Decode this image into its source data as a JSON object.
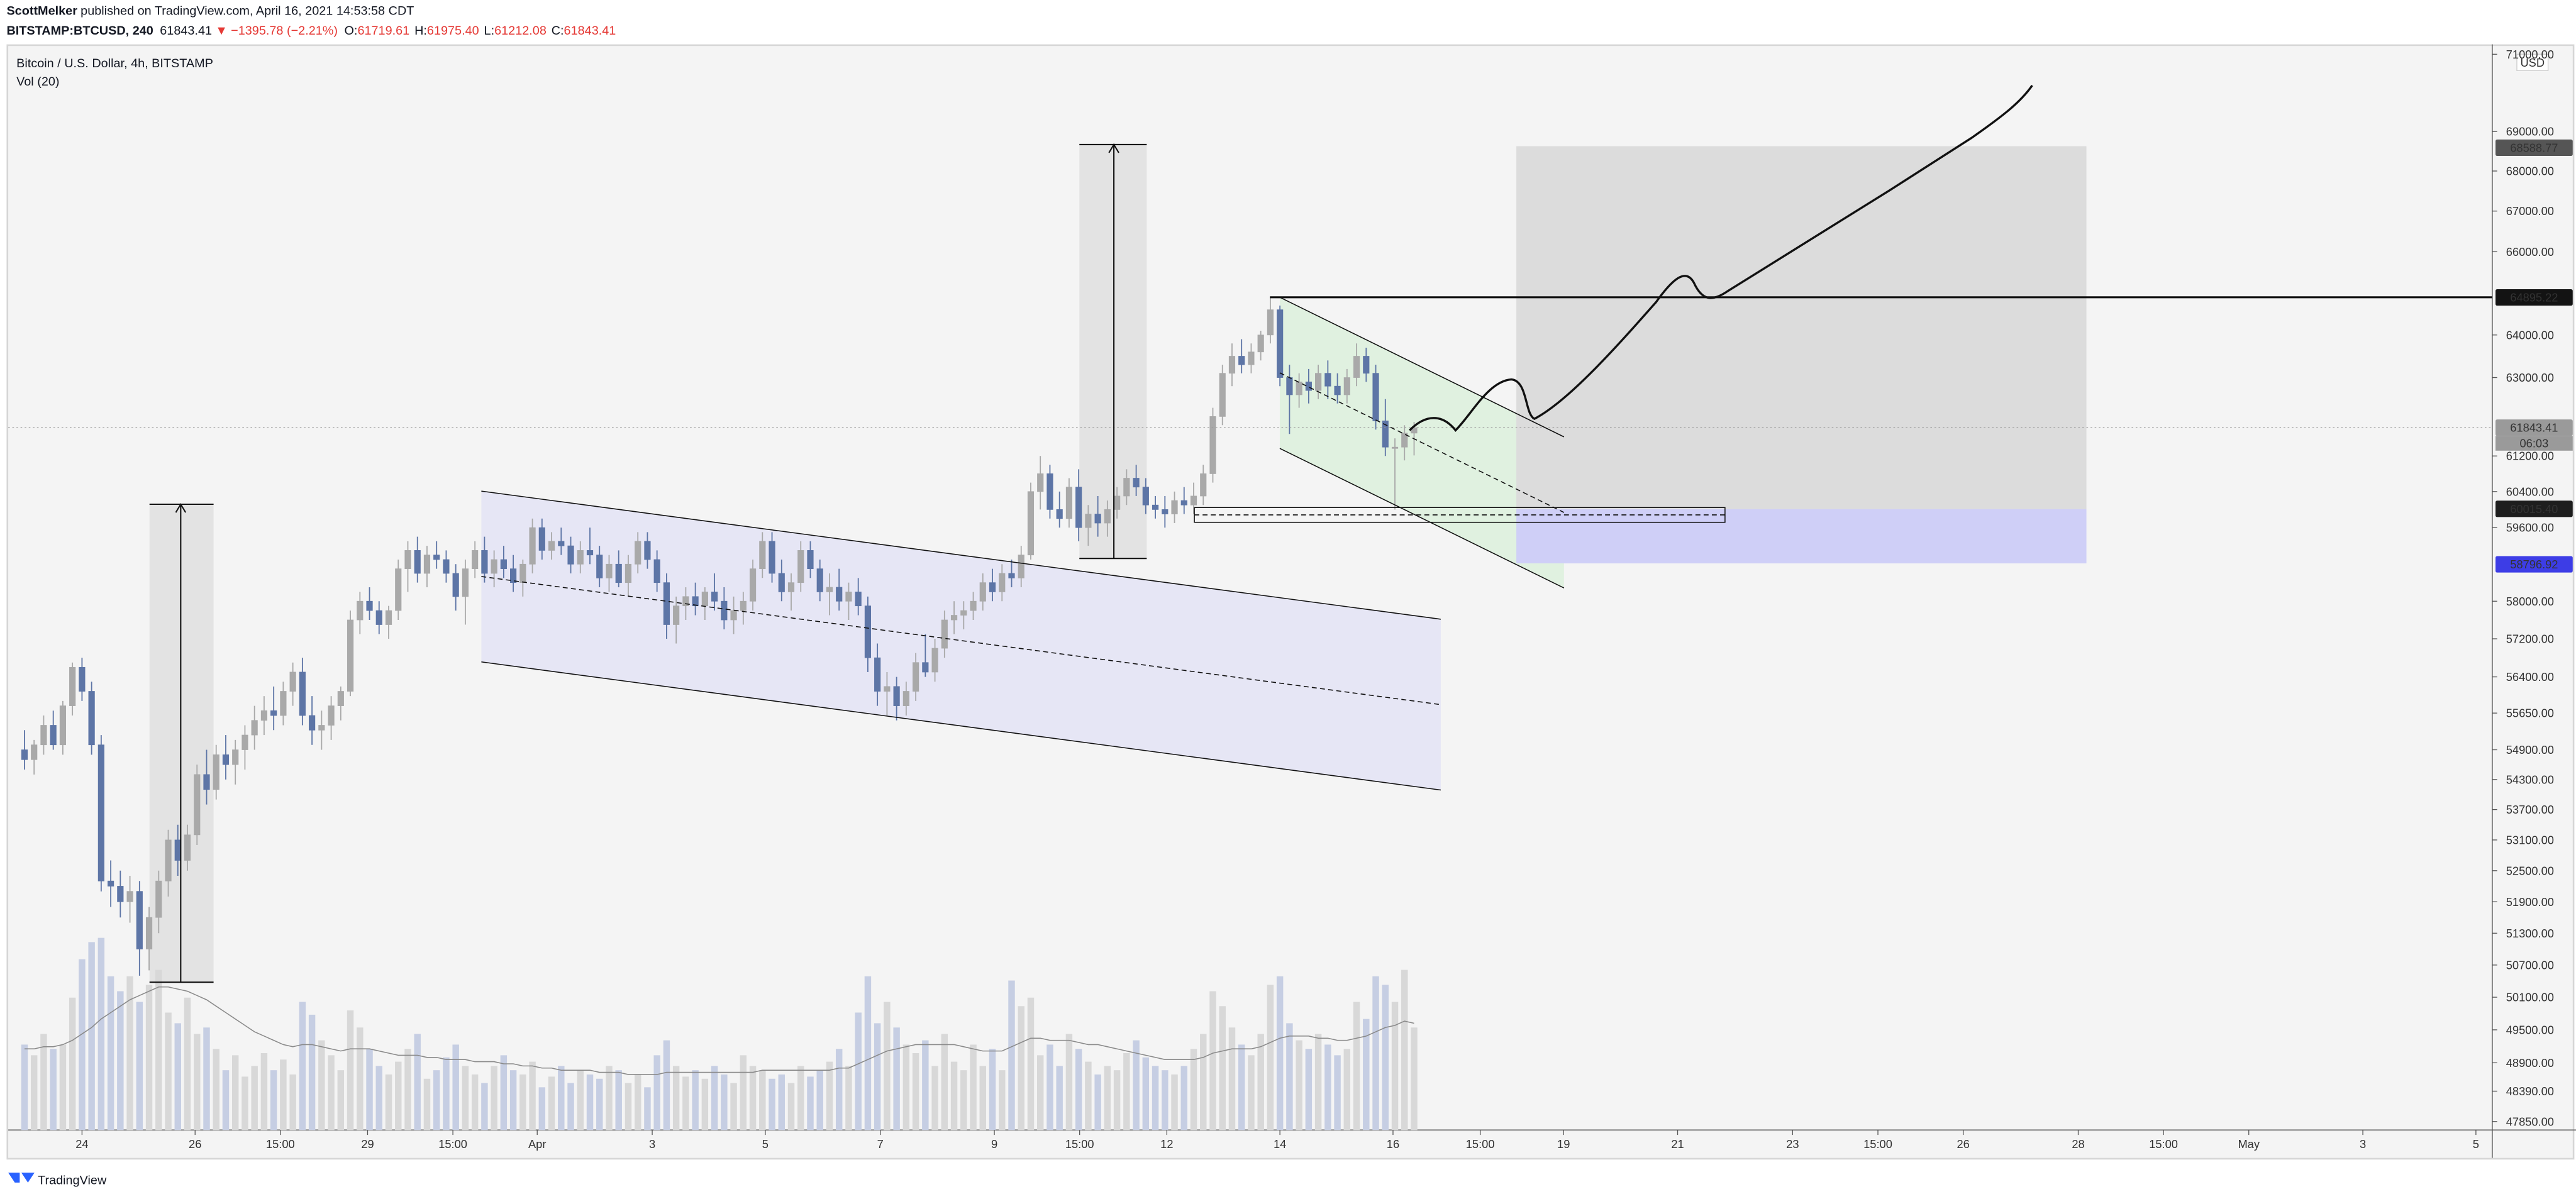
{
  "header": {
    "author": "ScottMelker",
    "published": "published on TradingView.com, April 16, 2021 14:53:58 CDT",
    "symbol": "BITSTAMP:BTCUSD, 240",
    "last": "61843.41",
    "arrow": "▼",
    "change": "−1395.78 (−2.21%)",
    "ohlc": [
      {
        "label": "O:",
        "value": "61719.61"
      },
      {
        "label": "H:",
        "value": "61975.40"
      },
      {
        "label": "L:",
        "value": "61212.08"
      },
      {
        "label": "C:",
        "value": "61843.41"
      }
    ]
  },
  "chart_data": {
    "type": "candlestick",
    "title": "Bitcoin / U.S. Dollar, 4h, BITSTAMP",
    "volume_title": "Vol (20)",
    "currency": "USD",
    "countdown": "06:03",
    "log": true,
    "ylim": [
      47700,
      71260
    ],
    "yticks": [
      {
        "value": 71000,
        "label": "71000.00"
      },
      {
        "value": 69000,
        "label": "69000.00"
      },
      {
        "value": 68000,
        "label": "68000.00"
      },
      {
        "value": 67000,
        "label": "67000.00"
      },
      {
        "value": 66000,
        "label": "66000.00"
      },
      {
        "value": 64000,
        "label": "64000.00"
      },
      {
        "value": 63000,
        "label": "63000.00"
      },
      {
        "value": 61200,
        "label": "61200.00"
      },
      {
        "value": 60400,
        "label": "60400.00"
      },
      {
        "value": 59600,
        "label": "59600.00"
      },
      {
        "value": 58000,
        "label": "58000.00"
      },
      {
        "value": 57200,
        "label": "57200.00"
      },
      {
        "value": 56400,
        "label": "56400.00"
      },
      {
        "value": 55650,
        "label": "55650.00"
      },
      {
        "value": 54900,
        "label": "54900.00"
      },
      {
        "value": 54300,
        "label": "54300.00"
      },
      {
        "value": 53700,
        "label": "53700.00"
      },
      {
        "value": 53100,
        "label": "53100.00"
      },
      {
        "value": 52500,
        "label": "52500.00"
      },
      {
        "value": 51900,
        "label": "51900.00"
      },
      {
        "value": 51300,
        "label": "51300.00"
      },
      {
        "value": 50700,
        "label": "50700.00"
      },
      {
        "value": 50100,
        "label": "50100.00"
      },
      {
        "value": 49500,
        "label": "49500.00"
      },
      {
        "value": 48900,
        "label": "48900.00"
      },
      {
        "value": 48390,
        "label": "48390.00"
      },
      {
        "value": 47850,
        "label": "47850.00"
      }
    ],
    "xlim": [
      -1.7,
      257.5
    ],
    "xticks": [
      {
        "value": 6,
        "label": "24"
      },
      {
        "value": 17.8,
        "label": "26"
      },
      {
        "value": 26.7,
        "label": "15:00"
      },
      {
        "value": 35.8,
        "label": "29"
      },
      {
        "value": 44.7,
        "label": "15:00"
      },
      {
        "value": 53.5,
        "label": "Apr"
      },
      {
        "value": 65.5,
        "label": "3"
      },
      {
        "value": 77.3,
        "label": "5"
      },
      {
        "value": 89.3,
        "label": "7"
      },
      {
        "value": 101.2,
        "label": "9"
      },
      {
        "value": 110.1,
        "label": "15:00"
      },
      {
        "value": 119.2,
        "label": "12"
      },
      {
        "value": 131,
        "label": "14"
      },
      {
        "value": 142.8,
        "label": "16"
      },
      {
        "value": 151.9,
        "label": "15:00"
      },
      {
        "value": 160.6,
        "label": "19"
      },
      {
        "value": 172.5,
        "label": "21"
      },
      {
        "value": 184.5,
        "label": "23"
      },
      {
        "value": 193.4,
        "label": "15:00"
      },
      {
        "value": 202.3,
        "label": "26"
      },
      {
        "value": 214.3,
        "label": "28"
      },
      {
        "value": 223.2,
        "label": "15:00"
      },
      {
        "value": 232.1,
        "label": "May"
      },
      {
        "value": 244,
        "label": "3"
      },
      {
        "value": 255.8,
        "label": "5"
      }
    ],
    "up_color": "#a9a9a9",
    "down_color": "#5d75a6",
    "volume_up_color": "#d8d8d8",
    "volume_down_color": "#c6cee3",
    "vol_ma_color": "#8a8a8a",
    "price_labels": [
      {
        "value": 68588.77,
        "color": "#555555"
      },
      {
        "value": 64895.22,
        "color": "#131313"
      },
      {
        "value": 61843.41,
        "color": "#9a9a9a"
      },
      {
        "value": 60015.4,
        "label": "60015.40",
        "color": "#1e1e1e"
      },
      {
        "value": 58796.92,
        "color": "#3d3de6"
      }
    ],
    "candles": [
      [
        54900,
        55300,
        54500,
        54700
      ],
      [
        54700,
        55100,
        54400,
        55000
      ],
      [
        55000,
        55600,
        54800,
        55400
      ],
      [
        55400,
        55700,
        54900,
        55000
      ],
      [
        55000,
        55900,
        54800,
        55800
      ],
      [
        55800,
        56700,
        55600,
        56600
      ],
      [
        56600,
        56800,
        55900,
        56100
      ],
      [
        56100,
        56300,
        54800,
        55000
      ],
      [
        55000,
        55200,
        52100,
        52300
      ],
      [
        52300,
        52700,
        51800,
        52200
      ],
      [
        52200,
        52500,
        51600,
        51900
      ],
      [
        51900,
        52400,
        51500,
        52100
      ],
      [
        52100,
        52300,
        50500,
        51000
      ],
      [
        51000,
        51800,
        50600,
        51600
      ],
      [
        51600,
        52500,
        51300,
        52300
      ],
      [
        52300,
        53300,
        52000,
        53100
      ],
      [
        53100,
        53400,
        52400,
        52700
      ],
      [
        52700,
        53400,
        52500,
        53200
      ],
      [
        53200,
        54600,
        53000,
        54400
      ],
      [
        54400,
        54900,
        53800,
        54100
      ],
      [
        54100,
        55000,
        53900,
        54800
      ],
      [
        54800,
        55200,
        54300,
        54600
      ],
      [
        54600,
        55100,
        54200,
        54900
      ],
      [
        54900,
        55400,
        54500,
        55200
      ],
      [
        55200,
        55800,
        54900,
        55500
      ],
      [
        55500,
        56000,
        55200,
        55700
      ],
      [
        55700,
        56200,
        55300,
        55600
      ],
      [
        55600,
        56300,
        55400,
        56100
      ],
      [
        56100,
        56700,
        55800,
        56500
      ],
      [
        56500,
        56800,
        55400,
        55600
      ],
      [
        55600,
        56000,
        55000,
        55300
      ],
      [
        55300,
        55700,
        54900,
        55400
      ],
      [
        55400,
        56000,
        55100,
        55800
      ],
      [
        55800,
        56200,
        55500,
        56100
      ],
      [
        56100,
        57800,
        56000,
        57600
      ],
      [
        57600,
        58200,
        57300,
        58000
      ],
      [
        58000,
        58300,
        57600,
        57800
      ],
      [
        57800,
        58000,
        57300,
        57500
      ],
      [
        57500,
        57900,
        57200,
        57800
      ],
      [
        57800,
        58900,
        57600,
        58700
      ],
      [
        58700,
        59300,
        58200,
        59100
      ],
      [
        59100,
        59400,
        58400,
        58600
      ],
      [
        58600,
        59200,
        58300,
        59000
      ],
      [
        59000,
        59300,
        58700,
        58900
      ],
      [
        58900,
        59100,
        58400,
        58600
      ],
      [
        58600,
        58800,
        57800,
        58100
      ],
      [
        58100,
        58900,
        57500,
        58700
      ],
      [
        58700,
        59300,
        58500,
        59100
      ],
      [
        59100,
        59400,
        58400,
        58600
      ],
      [
        58600,
        59100,
        58300,
        58900
      ],
      [
        58900,
        59200,
        58500,
        58700
      ],
      [
        58700,
        59000,
        58200,
        58400
      ],
      [
        58400,
        58900,
        58100,
        58800
      ],
      [
        58800,
        59800,
        58600,
        59600
      ],
      [
        59600,
        59800,
        58900,
        59100
      ],
      [
        59100,
        59500,
        58900,
        59300
      ],
      [
        59300,
        59600,
        59000,
        59200
      ],
      [
        59200,
        59400,
        58600,
        58800
      ],
      [
        58800,
        59300,
        58600,
        59100
      ],
      [
        59100,
        59600,
        58800,
        59000
      ],
      [
        59000,
        59200,
        58300,
        58500
      ],
      [
        58500,
        59000,
        58200,
        58800
      ],
      [
        58800,
        59100,
        58300,
        58400
      ],
      [
        58400,
        59000,
        58100,
        58800
      ],
      [
        58800,
        59500,
        58600,
        59300
      ],
      [
        59300,
        59500,
        58700,
        58900
      ],
      [
        58900,
        59100,
        58200,
        58400
      ],
      [
        58400,
        58600,
        57200,
        57500
      ],
      [
        57500,
        58100,
        57100,
        57900
      ],
      [
        57900,
        58300,
        57600,
        58100
      ],
      [
        58100,
        58400,
        57700,
        57900
      ],
      [
        57900,
        58300,
        57600,
        58200
      ],
      [
        58200,
        58600,
        57800,
        58000
      ],
      [
        58000,
        58300,
        57400,
        57600
      ],
      [
        57600,
        58100,
        57300,
        57800
      ],
      [
        57800,
        58200,
        57500,
        58000
      ],
      [
        58000,
        58900,
        57800,
        58700
      ],
      [
        58700,
        59500,
        58500,
        59300
      ],
      [
        59300,
        59500,
        58400,
        58600
      ],
      [
        58600,
        58900,
        58000,
        58200
      ],
      [
        58200,
        58600,
        57800,
        58400
      ],
      [
        58400,
        59300,
        58200,
        59100
      ],
      [
        59100,
        59300,
        58500,
        58700
      ],
      [
        58700,
        58900,
        58000,
        58200
      ],
      [
        58200,
        58600,
        57700,
        58300
      ],
      [
        58300,
        58700,
        57800,
        58000
      ],
      [
        58000,
        58400,
        57600,
        58200
      ],
      [
        58200,
        58500,
        57700,
        57900
      ],
      [
        57900,
        58100,
        56500,
        56800
      ],
      [
        56800,
        57100,
        55800,
        56100
      ],
      [
        56100,
        56500,
        55600,
        56200
      ],
      [
        56200,
        56400,
        55500,
        55800
      ],
      [
        55800,
        56300,
        55600,
        56100
      ],
      [
        56100,
        56900,
        55900,
        56700
      ],
      [
        56700,
        57300,
        56400,
        56500
      ],
      [
        56500,
        57200,
        56300,
        57000
      ],
      [
        57000,
        57800,
        56800,
        57600
      ],
      [
        57600,
        58000,
        57300,
        57700
      ],
      [
        57700,
        58000,
        57400,
        57800
      ],
      [
        57800,
        58200,
        57600,
        58000
      ],
      [
        58000,
        58600,
        57800,
        58400
      ],
      [
        58400,
        58700,
        58000,
        58200
      ],
      [
        58200,
        58800,
        58000,
        58600
      ],
      [
        58600,
        58900,
        58300,
        58500
      ],
      [
        58500,
        59200,
        58300,
        59000
      ],
      [
        59000,
        60600,
        58900,
        60400
      ],
      [
        60400,
        61200,
        60000,
        60800
      ],
      [
        60800,
        61000,
        59800,
        60000
      ],
      [
        60000,
        60400,
        59600,
        59800
      ],
      [
        59800,
        60700,
        59600,
        60500
      ],
      [
        60500,
        60900,
        59300,
        59600
      ],
      [
        59600,
        60100,
        59200,
        59900
      ],
      [
        59900,
        60300,
        59400,
        59700
      ],
      [
        59700,
        60200,
        59400,
        60000
      ],
      [
        60000,
        60500,
        59800,
        60300
      ],
      [
        60300,
        60900,
        60100,
        60700
      ],
      [
        60700,
        61000,
        60300,
        60500
      ],
      [
        60500,
        60700,
        59900,
        60100
      ],
      [
        60100,
        60300,
        59800,
        60000
      ],
      [
        60000,
        60300,
        59600,
        59900
      ],
      [
        59900,
        60400,
        59700,
        60200
      ],
      [
        60200,
        60500,
        59900,
        60100
      ],
      [
        60100,
        60600,
        59900,
        60300
      ],
      [
        60300,
        61000,
        60100,
        60800
      ],
      [
        60800,
        62300,
        60600,
        62100
      ],
      [
        62100,
        63300,
        61900,
        63100
      ],
      [
        63100,
        63800,
        62800,
        63500
      ],
      [
        63500,
        63900,
        63100,
        63300
      ],
      [
        63300,
        63800,
        63100,
        63600
      ],
      [
        63600,
        64100,
        63400,
        64000
      ],
      [
        64000,
        64895,
        63800,
        64600
      ],
      [
        64600,
        64700,
        62800,
        63000
      ],
      [
        63000,
        63300,
        61700,
        62600
      ],
      [
        62600,
        63100,
        62300,
        62900
      ],
      [
        62900,
        63200,
        62400,
        62700
      ],
      [
        62700,
        63300,
        62500,
        63100
      ],
      [
        63100,
        63400,
        62500,
        62800
      ],
      [
        62800,
        63100,
        62400,
        62600
      ],
      [
        62600,
        63200,
        62400,
        63000
      ],
      [
        63000,
        63800,
        62800,
        63500
      ],
      [
        63500,
        63700,
        62900,
        63100
      ],
      [
        63100,
        63300,
        61800,
        62000
      ],
      [
        62000,
        62500,
        61200,
        61400
      ],
      [
        61400,
        61600,
        60000,
        61400
      ],
      [
        61400,
        61900,
        61100,
        61719.61
      ],
      [
        61719.61,
        61975.4,
        61212.08,
        61843.41
      ]
    ],
    "volume": [
      40,
      35,
      45,
      38,
      40,
      62,
      80,
      88,
      90,
      72,
      65,
      72,
      60,
      68,
      75,
      55,
      50,
      62,
      45,
      48,
      38,
      28,
      35,
      25,
      30,
      36,
      28,
      33,
      26,
      60,
      54,
      42,
      35,
      28,
      56,
      48,
      38,
      30,
      26,
      32,
      38,
      45,
      24,
      28,
      34,
      40,
      30,
      26,
      22,
      30,
      35,
      28,
      26,
      32,
      20,
      25,
      30,
      22,
      28,
      26,
      24,
      30,
      28,
      22,
      26,
      20,
      35,
      42,
      30,
      25,
      28,
      24,
      30,
      26,
      22,
      35,
      30,
      28,
      24,
      26,
      22,
      30,
      25,
      28,
      32,
      38,
      30,
      55,
      72,
      50,
      60,
      48,
      40,
      36,
      42,
      30,
      45,
      32,
      28,
      40,
      30,
      38,
      28,
      70,
      58,
      62,
      35,
      40,
      30,
      45,
      38,
      32,
      26,
      30,
      28,
      36,
      42,
      34,
      30,
      28,
      26,
      30,
      38,
      45,
      65,
      58,
      48,
      40,
      35,
      45,
      68,
      72,
      50,
      42,
      38,
      45,
      40,
      35,
      38,
      60,
      52,
      72,
      68,
      60,
      75,
      48
    ],
    "vol_ma": [
      38,
      38,
      39,
      39,
      40,
      42,
      45,
      48,
      52,
      55,
      58,
      61,
      63,
      65,
      67,
      67,
      66,
      65,
      63,
      61,
      58,
      55,
      52,
      49,
      46,
      44,
      42,
      40,
      39,
      40,
      40,
      39,
      38,
      37,
      38,
      38,
      38,
      37,
      36,
      35,
      35,
      35,
      34,
      34,
      33,
      33,
      33,
      32,
      32,
      32,
      31,
      31,
      30,
      30,
      29,
      29,
      28,
      28,
      28,
      28,
      27,
      27,
      27,
      26,
      26,
      26,
      26,
      27,
      27,
      27,
      27,
      27,
      27,
      27,
      27,
      27,
      27,
      28,
      28,
      28,
      28,
      28,
      28,
      28,
      28,
      29,
      29,
      31,
      33,
      35,
      37,
      38,
      39,
      40,
      40,
      40,
      40,
      40,
      39,
      38,
      37,
      37,
      37,
      39,
      41,
      43,
      43,
      42,
      42,
      42,
      41,
      40,
      40,
      39,
      38,
      37,
      36,
      35,
      34,
      33,
      33,
      33,
      33,
      34,
      36,
      37,
      38,
      38,
      38,
      39,
      41,
      43,
      44,
      44,
      44,
      43,
      43,
      42,
      42,
      43,
      44,
      46,
      48,
      49,
      51,
      50
    ]
  },
  "footer": {
    "brand": "TradingView"
  }
}
